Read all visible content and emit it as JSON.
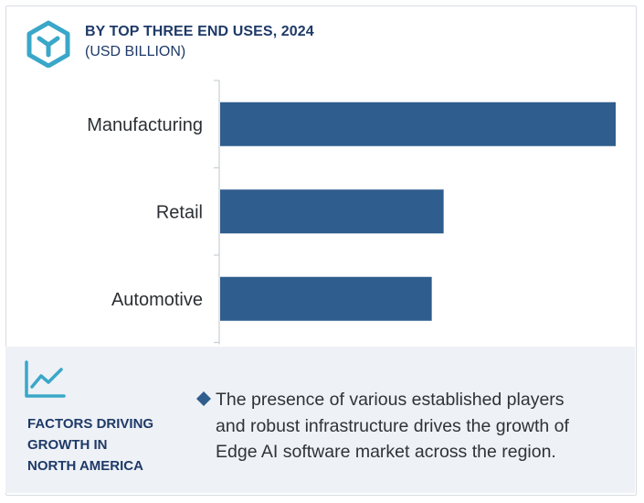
{
  "header": {
    "title": "BY TOP THREE END USES, 2024",
    "subtitle": "(USD BILLION)",
    "logo_icon": "cube-outline-icon"
  },
  "colors": {
    "bar": "#2f5d8d",
    "accent": "#3aa7c9",
    "title": "#1e3a68",
    "footer_bg": "#eef1f6"
  },
  "chart_data": {
    "type": "bar",
    "orientation": "horizontal",
    "categories": [
      "Manufacturing",
      "Retail",
      "Automotive"
    ],
    "values": [
      100,
      56.5,
      53.5
    ],
    "xlim": [
      0,
      100
    ],
    "title": "BY TOP THREE END USES, 2024",
    "subtitle": "(USD BILLION)",
    "grid": false,
    "legend": false
  },
  "footer": {
    "icon": "line-chart-icon",
    "factors_lines": [
      "FACTORS DRIVING",
      "GROWTH IN",
      "NORTH AMERICA"
    ],
    "bullet_icon": "diamond-bullet-icon",
    "description_lines": [
      "The presence of various established players",
      "and robust infrastructure drives the growth of",
      "Edge AI software market across the region."
    ]
  }
}
